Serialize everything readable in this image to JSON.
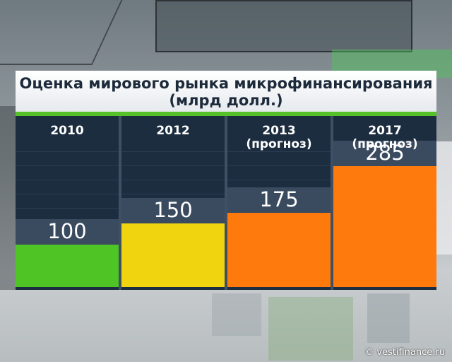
{
  "chart_data": {
    "type": "bar",
    "title": "Оценка мирового рынка микрофинансирования",
    "subtitle": "(млрд долл.)",
    "categories": [
      "2010",
      "2012",
      "2013\n(прогноз)",
      "2017\n(прогноз)"
    ],
    "values": [
      100,
      150,
      175,
      285
    ],
    "colors": [
      "#4fc425",
      "#f0d410",
      "#ff7a0c",
      "#ff7a0c"
    ],
    "ylim": [
      0,
      380
    ],
    "grid": false,
    "legend": "none"
  },
  "footer": "© vestifinance.ru"
}
